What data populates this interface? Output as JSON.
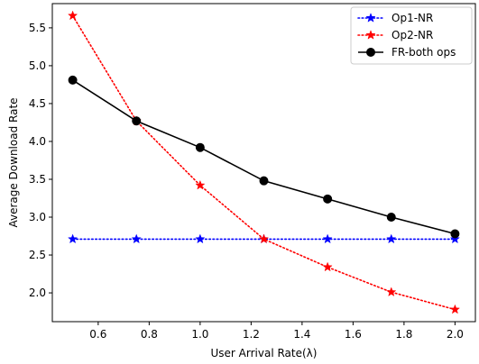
{
  "chart_data": {
    "type": "line",
    "title": "",
    "xlabel": "User Arrival Rate(λ)",
    "ylabel": "Average Download Rate",
    "xlim": [
      0.42,
      2.08
    ],
    "ylim": [
      1.62,
      5.82
    ],
    "xticks": [
      0.6,
      0.8,
      1.0,
      1.2,
      1.4,
      1.6,
      1.8,
      2.0
    ],
    "xtick_labels": [
      "0.6",
      "0.8",
      "1.0",
      "1.2",
      "1.4",
      "1.6",
      "1.8",
      "2.0"
    ],
    "yticks": [
      2.0,
      2.5,
      3.0,
      3.5,
      4.0,
      4.5,
      5.0,
      5.5
    ],
    "ytick_labels": [
      "2.0",
      "2.5",
      "3.0",
      "3.5",
      "4.0",
      "4.5",
      "5.0",
      "5.5"
    ],
    "grid": false,
    "legend_position": "top-right",
    "x": [
      0.5,
      0.75,
      1.0,
      1.25,
      1.5,
      1.75,
      2.0
    ],
    "series": [
      {
        "name": "Op1-NR",
        "color": "#0000ff",
        "line_style": "dotted",
        "marker": "star",
        "values": [
          2.71,
          2.71,
          2.71,
          2.71,
          2.71,
          2.71,
          2.71
        ]
      },
      {
        "name": "Op2-NR",
        "color": "#ff0000",
        "line_style": "dotted",
        "marker": "star",
        "values": [
          5.66,
          4.27,
          3.42,
          2.71,
          2.34,
          2.01,
          1.78
        ]
      },
      {
        "name": "FR-both ops",
        "color": "#000000",
        "line_style": "solid",
        "marker": "circle",
        "values": [
          4.81,
          4.27,
          3.92,
          3.48,
          3.24,
          3.0,
          2.78
        ]
      }
    ]
  }
}
